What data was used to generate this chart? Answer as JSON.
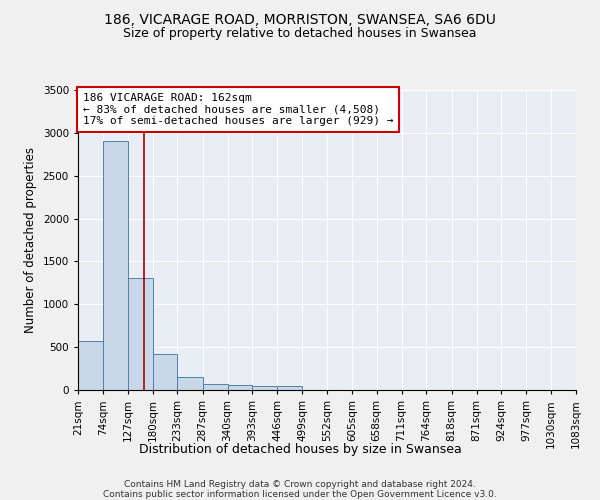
{
  "title1": "186, VICARAGE ROAD, MORRISTON, SWANSEA, SA6 6DU",
  "title2": "Size of property relative to detached houses in Swansea",
  "xlabel": "Distribution of detached houses by size in Swansea",
  "ylabel": "Number of detached properties",
  "footer1": "Contains HM Land Registry data © Crown copyright and database right 2024.",
  "footer2": "Contains public sector information licensed under the Open Government Licence v3.0.",
  "bins": [
    21,
    74,
    127,
    180,
    233,
    287,
    340,
    393,
    446,
    499,
    552,
    605,
    658,
    711,
    764,
    818,
    871,
    924,
    977,
    1030,
    1083
  ],
  "heights": [
    570,
    2900,
    1310,
    420,
    155,
    75,
    55,
    50,
    50,
    0,
    0,
    0,
    0,
    0,
    0,
    0,
    0,
    0,
    0,
    0
  ],
  "bar_color": "#c8d8e8",
  "bar_edge_color": "#5080aa",
  "red_line_x": 162,
  "annotation_title": "186 VICARAGE ROAD: 162sqm",
  "annotation_line1": "← 83% of detached houses are smaller (4,508)",
  "annotation_line2": "17% of semi-detached houses are larger (929) →",
  "annotation_box_color": "#ffffff",
  "annotation_border_color": "#cc0000",
  "red_line_color": "#aa0000",
  "ylim": [
    0,
    3500
  ],
  "yticks": [
    0,
    500,
    1000,
    1500,
    2000,
    2500,
    3000,
    3500
  ],
  "background_color": "#e8eef4",
  "grid_color": "#ffffff",
  "title1_fontsize": 10,
  "title2_fontsize": 9,
  "xlabel_fontsize": 9,
  "ylabel_fontsize": 8.5,
  "tick_fontsize": 7.5,
  "annotation_fontsize": 8,
  "footer_fontsize": 6.5
}
